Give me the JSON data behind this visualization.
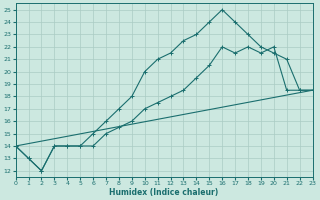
{
  "xlabel": "Humidex (Indice chaleur)",
  "bg_color": "#cce8e0",
  "grid_color": "#aaccc4",
  "line_color": "#1a6e6e",
  "xlim": [
    0,
    23
  ],
  "ylim": [
    11.5,
    25.5
  ],
  "xticks": [
    0,
    1,
    2,
    3,
    4,
    5,
    6,
    7,
    8,
    9,
    10,
    11,
    12,
    13,
    14,
    15,
    16,
    17,
    18,
    19,
    20,
    21,
    22,
    23
  ],
  "yticks": [
    12,
    13,
    14,
    15,
    16,
    17,
    18,
    19,
    20,
    21,
    22,
    23,
    24,
    25
  ],
  "line1_x": [
    0,
    1,
    2,
    3,
    4,
    5,
    6,
    7,
    8,
    9,
    10,
    11,
    12,
    13,
    14,
    15,
    16,
    17,
    18,
    19,
    20,
    21,
    22,
    23
  ],
  "line1_y": [
    14,
    13,
    12,
    14,
    14,
    14,
    15,
    16,
    17,
    18,
    20,
    21,
    21.5,
    22.5,
    23,
    24,
    25,
    24,
    23,
    22,
    21.5,
    21,
    18.5,
    18.5
  ],
  "line2_x": [
    0,
    1,
    2,
    3,
    4,
    5,
    6,
    7,
    8,
    9,
    10,
    11,
    12,
    13,
    14,
    15,
    16,
    17,
    18,
    19,
    20,
    21,
    22,
    23
  ],
  "line2_y": [
    14,
    13,
    12,
    14,
    14,
    14,
    14,
    15,
    15.5,
    16,
    17,
    17.5,
    18,
    18.5,
    19.5,
    20.5,
    22,
    21.5,
    22,
    21.5,
    22,
    18.5,
    18.5,
    18.5
  ],
  "line3_x": [
    0,
    23
  ],
  "line3_y": [
    14,
    18.5
  ]
}
